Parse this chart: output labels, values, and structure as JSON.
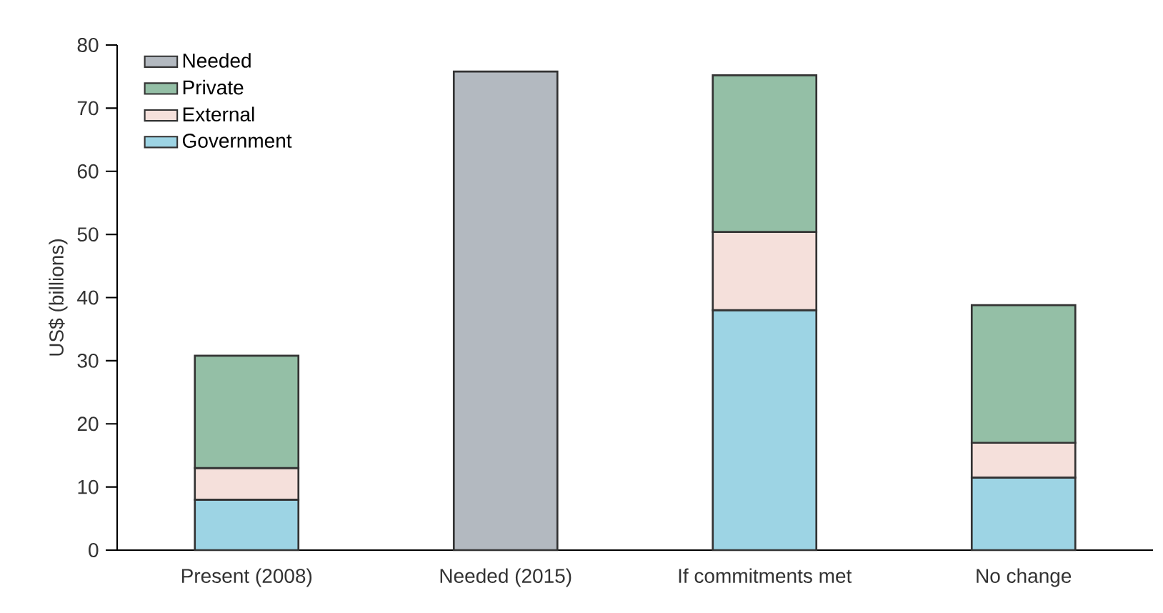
{
  "chart_data": {
    "type": "bar",
    "stacked": true,
    "ylabel": "US$ (billions)",
    "categories": [
      "Present (2008)",
      "Needed (2015)",
      "If commitments met",
      "No change"
    ],
    "series": [
      {
        "name": "Government",
        "color": "#9dd4e4",
        "values": [
          8,
          null,
          38,
          11.5
        ]
      },
      {
        "name": "External",
        "color": "#f5e0db",
        "values": [
          5,
          null,
          12.4,
          5.5
        ]
      },
      {
        "name": "Private",
        "color": "#94bfa6",
        "values": [
          17.8,
          null,
          24.8,
          21.8
        ]
      },
      {
        "name": "Needed",
        "color": "#b3b9c0",
        "values": [
          null,
          75.8,
          null,
          null
        ]
      }
    ],
    "ylim": [
      0,
      80
    ],
    "yticks": [
      0,
      10,
      20,
      30,
      40,
      50,
      60,
      70,
      80
    ],
    "legend": "top left",
    "grid": false
  }
}
